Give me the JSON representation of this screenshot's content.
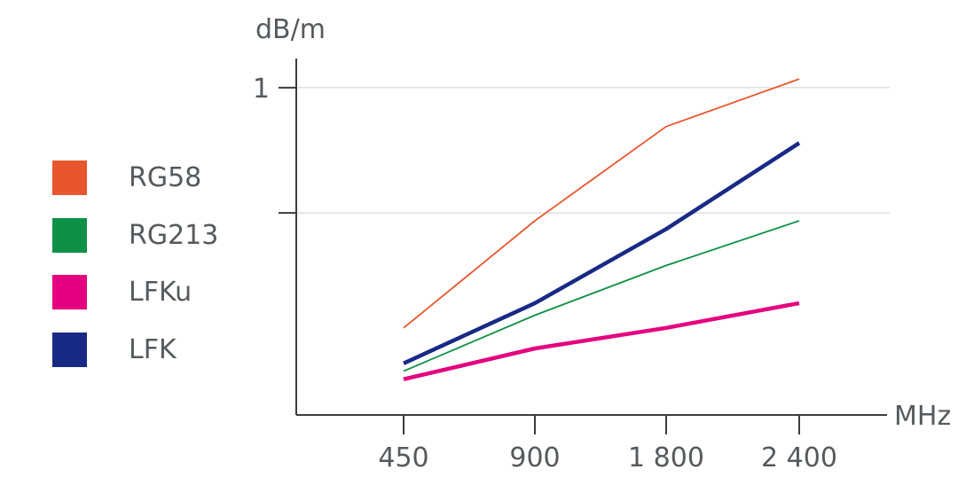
{
  "chart_data": {
    "type": "line",
    "title": "",
    "ylabel": "dB/m",
    "xlabel": "MHz",
    "categories": [
      "450",
      "900",
      "1 800",
      "2 400"
    ],
    "y_scale": "log",
    "ylim": [
      0.23,
      1.14
    ],
    "y_ticks": [
      {
        "value": 1,
        "label": "1"
      },
      {
        "value": 0.57,
        "label": ""
      }
    ],
    "grid": "horizontal",
    "legend_position": "left",
    "series": [
      {
        "name": "RG58",
        "color": "#e8562e",
        "width": "thin",
        "values": [
          0.34,
          0.55,
          0.84,
          1.04
        ]
      },
      {
        "name": "RG213",
        "color": "#0e9147",
        "width": "thin",
        "values": [
          0.28,
          0.36,
          0.45,
          0.55
        ]
      },
      {
        "name": "LFKu",
        "color": "#e4007e",
        "width": "thick",
        "values": [
          0.27,
          0.31,
          0.34,
          0.38
        ]
      },
      {
        "name": "LFK",
        "color": "#182a85",
        "width": "thick",
        "values": [
          0.29,
          0.38,
          0.53,
          0.78
        ]
      }
    ]
  }
}
